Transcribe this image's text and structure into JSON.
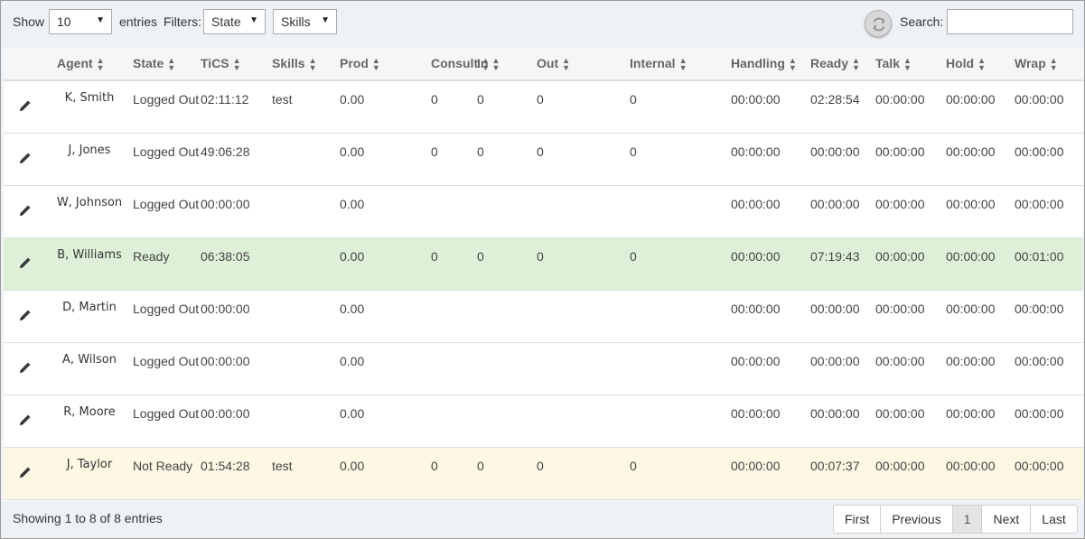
{
  "toolbar": {
    "show_label": "Show",
    "entries_value": "10",
    "entries_label": "entries",
    "filters_label": "Filters:",
    "state_filter": "State",
    "skills_filter": "Skills",
    "search_label": "Search:",
    "search_value": "",
    "refresh_icon": "refresh-icon"
  },
  "table": {
    "columns": [
      "Agent",
      "State",
      "TiCS",
      "Skills",
      "Prod",
      "Consult",
      "In",
      "Out",
      "Internal",
      "Handling",
      "Ready",
      "Talk",
      "Hold",
      "Wrap"
    ],
    "rows": [
      {
        "agent": "K, Smith",
        "state": "Logged Out",
        "tics": "02:11:12",
        "skills": "test",
        "prod": "0.00",
        "consult": "0",
        "in": "0",
        "out": "0",
        "internal": "0",
        "handling": "00:00:00",
        "ready": "02:28:54",
        "talk": "00:00:00",
        "hold": "00:00:00",
        "wrap": "00:00:00",
        "status": "normal"
      },
      {
        "agent": "J, Jones",
        "state": "Logged Out",
        "tics": "49:06:28",
        "skills": "",
        "prod": "0.00",
        "consult": "0",
        "in": "0",
        "out": "0",
        "internal": "0",
        "handling": "00:00:00",
        "ready": "00:00:00",
        "talk": "00:00:00",
        "hold": "00:00:00",
        "wrap": "00:00:00",
        "status": "normal"
      },
      {
        "agent": "W, Johnson",
        "state": "Logged Out",
        "tics": "00:00:00",
        "skills": "",
        "prod": "0.00",
        "consult": "",
        "in": "",
        "out": "",
        "internal": "",
        "handling": "00:00:00",
        "ready": "00:00:00",
        "talk": "00:00:00",
        "hold": "00:00:00",
        "wrap": "00:00:00",
        "status": "normal"
      },
      {
        "agent": "B, Williams",
        "state": "Ready",
        "tics": "06:38:05",
        "skills": "",
        "prod": "0.00",
        "consult": "0",
        "in": "0",
        "out": "0",
        "internal": "0",
        "handling": "00:00:00",
        "ready": "07:19:43",
        "talk": "00:00:00",
        "hold": "00:00:00",
        "wrap": "00:01:00",
        "status": "ready"
      },
      {
        "agent": "D, Martin",
        "state": "Logged Out",
        "tics": "00:00:00",
        "skills": "",
        "prod": "0.00",
        "consult": "",
        "in": "",
        "out": "",
        "internal": "",
        "handling": "00:00:00",
        "ready": "00:00:00",
        "talk": "00:00:00",
        "hold": "00:00:00",
        "wrap": "00:00:00",
        "status": "normal"
      },
      {
        "agent": "A, Wilson",
        "state": "Logged Out",
        "tics": "00:00:00",
        "skills": "",
        "prod": "0.00",
        "consult": "",
        "in": "",
        "out": "",
        "internal": "",
        "handling": "00:00:00",
        "ready": "00:00:00",
        "talk": "00:00:00",
        "hold": "00:00:00",
        "wrap": "00:00:00",
        "status": "normal"
      },
      {
        "agent": "R, Moore",
        "state": "Logged Out",
        "tics": "00:00:00",
        "skills": "",
        "prod": "0.00",
        "consult": "",
        "in": "",
        "out": "",
        "internal": "",
        "handling": "00:00:00",
        "ready": "00:00:00",
        "talk": "00:00:00",
        "hold": "00:00:00",
        "wrap": "00:00:00",
        "status": "normal"
      },
      {
        "agent": "J, Taylor",
        "state": "Not Ready",
        "tics": "01:54:28",
        "skills": "test",
        "prod": "0.00",
        "consult": "0",
        "in": "0",
        "out": "0",
        "internal": "0",
        "handling": "00:00:00",
        "ready": "00:07:37",
        "talk": "00:00:00",
        "hold": "00:00:00",
        "wrap": "00:00:00",
        "status": "notready"
      }
    ]
  },
  "footer": {
    "info": "Showing 1 to 8 of 8 entries",
    "pager": [
      "First",
      "Previous",
      "1",
      "Next",
      "Last"
    ],
    "active_page": "1"
  },
  "colors": {
    "ready_row": "#dff0d8",
    "notready_row": "#fcf8e3",
    "toolbar_bg": "#eef2f6"
  }
}
